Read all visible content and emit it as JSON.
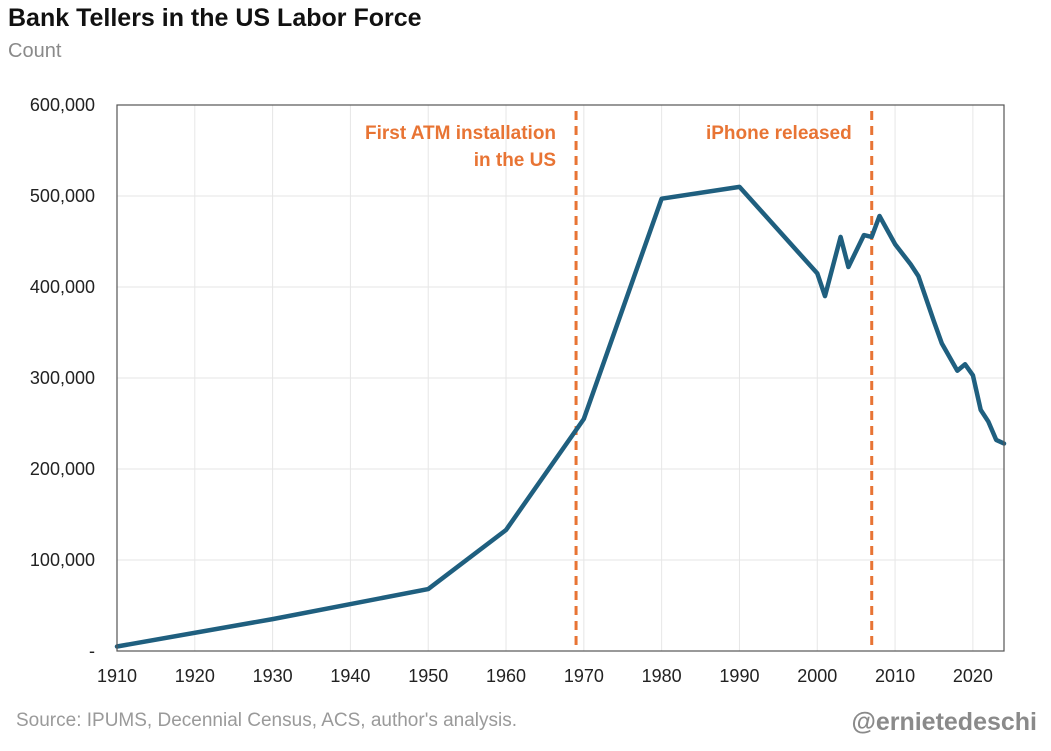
{
  "header": {
    "title": "Bank Tellers in the US Labor Force",
    "subtitle": "Count"
  },
  "footer": {
    "source": "Source: IPUMS, Decennial Census, ACS, author's analysis.",
    "handle": "@ernietedeschi"
  },
  "colors": {
    "line": "#1f5f7f",
    "annotation": "#e87434",
    "grid": "#e6e6e6",
    "axis": "#555555"
  },
  "chart_data": {
    "type": "line",
    "title": "Bank Tellers in the US Labor Force",
    "subtitle": "Count",
    "xlim": [
      1910,
      2024
    ],
    "ylim": [
      0,
      600000
    ],
    "x_ticks": [
      1910,
      1920,
      1930,
      1940,
      1950,
      1960,
      1970,
      1980,
      1990,
      2000,
      2010,
      2020
    ],
    "y_ticks": [
      0,
      100000,
      200000,
      300000,
      400000,
      500000,
      600000
    ],
    "y_tick_labels": [
      "-",
      "100,000",
      "200,000",
      "300,000",
      "400,000",
      "500,000",
      "600,000"
    ],
    "grid": true,
    "series": [
      {
        "x": [
          1910,
          1930,
          1950,
          1960,
          1970,
          1980,
          1990,
          2000,
          2001,
          2003,
          2004,
          2006,
          2007,
          2008,
          2010,
          2012,
          2013,
          2015,
          2016,
          2018,
          2019,
          2020,
          2021,
          2022,
          2023,
          2024
        ],
        "values": [
          5000,
          35000,
          68000,
          133000,
          255000,
          497000,
          510000,
          415000,
          390000,
          455000,
          422000,
          457000,
          455000,
          478000,
          447000,
          425000,
          412000,
          362000,
          338000,
          308000,
          315000,
          303000,
          265000,
          252000,
          232000,
          228000
        ]
      }
    ],
    "annotations": [
      {
        "x": 1969,
        "label_lines": [
          "First ATM installation",
          "in the US"
        ]
      },
      {
        "x": 2007,
        "label_lines": [
          "iPhone released"
        ]
      }
    ]
  }
}
